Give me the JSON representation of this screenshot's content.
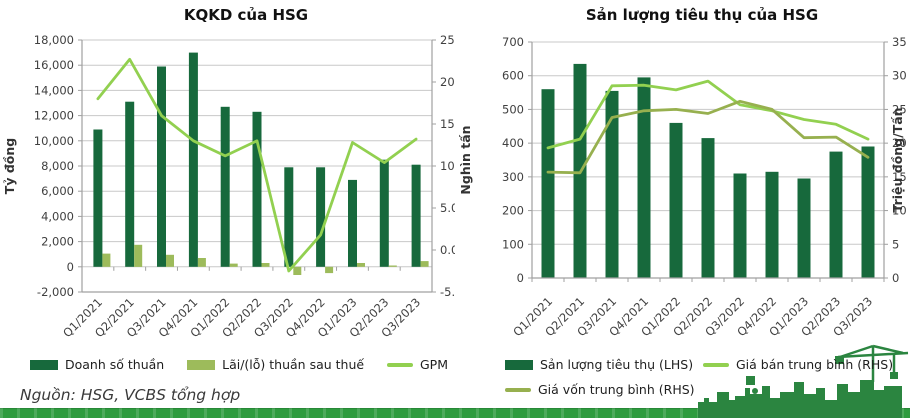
{
  "source_note": "Nguồn: HSG, VCBS tổng hợp",
  "colors": {
    "bar_dark_green": "#17693C",
    "bar_light_green": "#9DBB5B",
    "line_bright_green": "#92D050",
    "line_olive_green": "#97B04F",
    "gridline": "#C8C8C8",
    "axis": "#A0A0A0",
    "tick_text": "#404040",
    "title_text": "#111111",
    "footer_strip_green": "#2E9B3F",
    "skyline_green": "#2B8540"
  },
  "categories": [
    "Q1/2021",
    "Q2/2021",
    "Q3/2021",
    "Q4/2021",
    "Q1/2022",
    "Q2/2022",
    "Q3/2022",
    "Q4/2022",
    "Q1/2023",
    "Q2/2023",
    "Q3/2023"
  ],
  "chart_data": [
    {
      "type": "bar+line",
      "title": "KQKD của HSG",
      "ylabel_left": "Tỷ đồng",
      "ylabel_right": "",
      "grid": true,
      "legend_position": "bottom",
      "left_axis": {
        "min": -2000,
        "max": 18000,
        "step": 2000,
        "tick_labels": [
          "-2,000",
          "0",
          "2,000",
          "4,000",
          "6,000",
          "8,000",
          "10,000",
          "12,000",
          "14,000",
          "16,000",
          "18,000"
        ]
      },
      "right_axis": {
        "min": -5,
        "max": 25,
        "step": 5,
        "tick_labels": [
          "-5.0%",
          "0.0%",
          "5.0%",
          "10.0%",
          "15.0%",
          "20.0%",
          "25.0%"
        ]
      },
      "series": [
        {
          "id": "doanh-so-thuan",
          "name": "Doanh số thuần",
          "kind": "bar",
          "axis": "left",
          "color_key": "bar_dark_green",
          "values": [
            10900,
            13100,
            15900,
            17000,
            12700,
            12300,
            7900,
            7900,
            6900,
            8500,
            8100
          ]
        },
        {
          "id": "lai-lo-thuan-sau-thue",
          "name": "Lãi/(lỗ) thuần sau thuế",
          "kind": "bar",
          "axis": "left",
          "color_key": "bar_light_green",
          "values": [
            1050,
            1750,
            950,
            700,
            250,
            300,
            -650,
            -500,
            300,
            100,
            450
          ]
        },
        {
          "id": "gpm",
          "name": "GPM",
          "kind": "line",
          "axis": "right",
          "color_key": "line_bright_green",
          "values": [
            18,
            22.7,
            16,
            13,
            11.2,
            13,
            -2.5,
            1.8,
            12.8,
            10.4,
            13.2
          ]
        }
      ]
    },
    {
      "type": "bar+line",
      "title": "Sản lượng tiêu thụ của HSG",
      "ylabel_left": "Nghìn tấn",
      "ylabel_right": "Triệu đồng/Tấn",
      "grid": true,
      "legend_position": "bottom",
      "left_axis": {
        "min": 0,
        "max": 700,
        "step": 100,
        "tick_labels": [
          "0",
          "100",
          "200",
          "300",
          "400",
          "500",
          "600",
          "700"
        ]
      },
      "right_axis": {
        "min": 0,
        "max": 35,
        "step": 5,
        "tick_labels": [
          "0",
          "5",
          "10",
          "15",
          "20",
          "25",
          "30",
          "35"
        ]
      },
      "series": [
        {
          "id": "san-luong-tieu-thu",
          "name": "Sản lượng tiêu thụ (LHS)",
          "kind": "bar",
          "axis": "left",
          "color_key": "bar_dark_green",
          "values": [
            560,
            635,
            555,
            595,
            460,
            415,
            310,
            315,
            295,
            375,
            390
          ]
        },
        {
          "id": "gia-ban-trung-binh",
          "name": "Giá bán trung bình (RHS)",
          "kind": "line",
          "axis": "right",
          "color_key": "line_bright_green",
          "values": [
            19.3,
            20.6,
            28.5,
            28.6,
            27.9,
            29.2,
            25.7,
            24.8,
            23.5,
            22.8,
            20.6
          ]
        },
        {
          "id": "gia-von-trung-binh",
          "name": "Giá vốn trung bình (RHS)",
          "kind": "line",
          "axis": "right",
          "color_key": "line_olive_green",
          "values": [
            15.7,
            15.6,
            23.8,
            24.8,
            25,
            24.4,
            26.2,
            25,
            20.8,
            20.9,
            17.9
          ]
        }
      ]
    }
  ]
}
